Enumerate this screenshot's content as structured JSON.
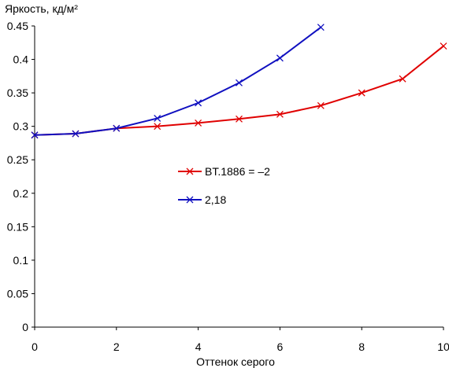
{
  "chart_data": {
    "type": "line",
    "ylabel": "Яркость, кд/м²",
    "xlabel": "Оттенок серого",
    "xlim": [
      0,
      10
    ],
    "ylim": [
      0,
      0.45
    ],
    "x_ticks": [
      "0",
      "2",
      "4",
      "6",
      "8",
      "10"
    ],
    "y_ticks": [
      "0",
      "0.05",
      "0.1",
      "0.15",
      "0.2",
      "0.25",
      "0.3",
      "0.35",
      "0.4",
      "0.45"
    ],
    "grid": false,
    "legend_position": "center",
    "series": [
      {
        "name": "BT.1886 = –2",
        "color": "#e00000",
        "marker": "x",
        "x": [
          0,
          1,
          2,
          3,
          4,
          5,
          6,
          7,
          8,
          9,
          10
        ],
        "y": [
          0.287,
          0.289,
          0.297,
          0.3,
          0.305,
          0.311,
          0.318,
          0.331,
          0.35,
          0.371,
          0.42
        ]
      },
      {
        "name": "2,18",
        "color": "#1010c0",
        "marker": "x",
        "x": [
          0,
          1,
          2,
          3,
          4,
          5,
          6,
          7
        ],
        "y": [
          0.287,
          0.289,
          0.297,
          0.312,
          0.335,
          0.365,
          0.402,
          0.448
        ]
      }
    ]
  }
}
